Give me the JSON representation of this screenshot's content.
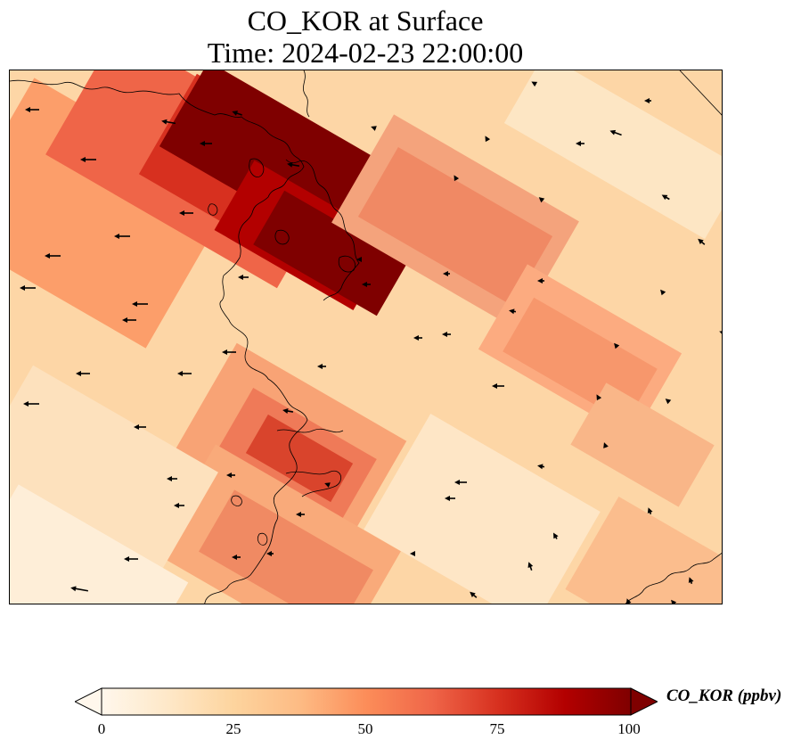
{
  "title": {
    "line1": "CO_KOR at Surface",
    "line2": "Time: 2024-02-23 22:00:00"
  },
  "colorbar": {
    "label": "CO_KOR (ppbv)",
    "ticks": [
      "0",
      "25",
      "50",
      "75",
      "100"
    ],
    "min": 0,
    "max": 100,
    "extend": "both",
    "colormap": "OrRd",
    "colors": [
      "#fff7ec",
      "#fee8c8",
      "#fdd49e",
      "#fdbb84",
      "#fc8d59",
      "#ef6548",
      "#d7301f",
      "#b30000",
      "#7f0000"
    ]
  },
  "map": {
    "field": "CO_KOR",
    "level": "Surface",
    "coastline_color": "#000000",
    "wind_arrow_color": "#000000"
  }
}
